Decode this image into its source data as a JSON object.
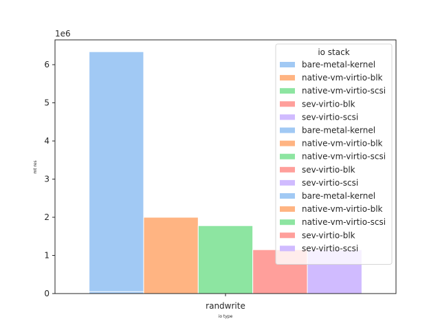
{
  "chart_data": {
    "type": "bar",
    "categories": [
      "randwrite"
    ],
    "xlabel": "io type",
    "ylabel": "mt res",
    "ylim": [
      0,
      6650000
    ],
    "y_ticks": [
      0,
      1000000,
      2000000,
      3000000,
      4000000,
      5000000,
      6000000
    ],
    "y_tick_labels": [
      "0",
      "1",
      "2",
      "3",
      "4",
      "5",
      "6"
    ],
    "y_offset_label": "1e6",
    "grid": false,
    "legend": {
      "title": "io stack",
      "placement": "top-right",
      "entries": [
        {
          "label": "bare-metal-kernel",
          "color": "#a1c9f4"
        },
        {
          "label": "native-vm-virtio-blk",
          "color": "#ffb482"
        },
        {
          "label": "native-vm-virtio-scsi",
          "color": "#8de5a1"
        },
        {
          "label": "sev-virtio-blk",
          "color": "#ff9f9b"
        },
        {
          "label": "sev-virtio-scsi",
          "color": "#d0bbff"
        },
        {
          "label": "bare-metal-kernel",
          "color": "#a1c9f4"
        },
        {
          "label": "native-vm-virtio-blk",
          "color": "#ffb482"
        },
        {
          "label": "native-vm-virtio-scsi",
          "color": "#8de5a1"
        },
        {
          "label": "sev-virtio-blk",
          "color": "#ff9f9b"
        },
        {
          "label": "sev-virtio-scsi",
          "color": "#d0bbff"
        },
        {
          "label": "bare-metal-kernel",
          "color": "#a1c9f4"
        },
        {
          "label": "native-vm-virtio-blk",
          "color": "#ffb482"
        },
        {
          "label": "native-vm-virtio-scsi",
          "color": "#8de5a1"
        },
        {
          "label": "sev-virtio-blk",
          "color": "#ff9f9b"
        },
        {
          "label": "sev-virtio-scsi",
          "color": "#d0bbff"
        }
      ]
    },
    "series": [
      {
        "name": "bare-metal-kernel",
        "color": "#a1c9f4",
        "values": [
          6340000
        ]
      },
      {
        "name": "native-vm-virtio-blk",
        "color": "#ffb482",
        "values": [
          2000000
        ]
      },
      {
        "name": "native-vm-virtio-scsi",
        "color": "#8de5a1",
        "values": [
          1780000
        ]
      },
      {
        "name": "sev-virtio-blk",
        "color": "#ff9f9b",
        "values": [
          1150000
        ]
      },
      {
        "name": "sev-virtio-scsi",
        "color": "#d0bbff",
        "values": [
          1150000
        ]
      }
    ],
    "overlay_series": [
      {
        "name": "bare-metal-kernel",
        "color": "#a1c9f4",
        "values": [
          50000
        ]
      }
    ]
  }
}
